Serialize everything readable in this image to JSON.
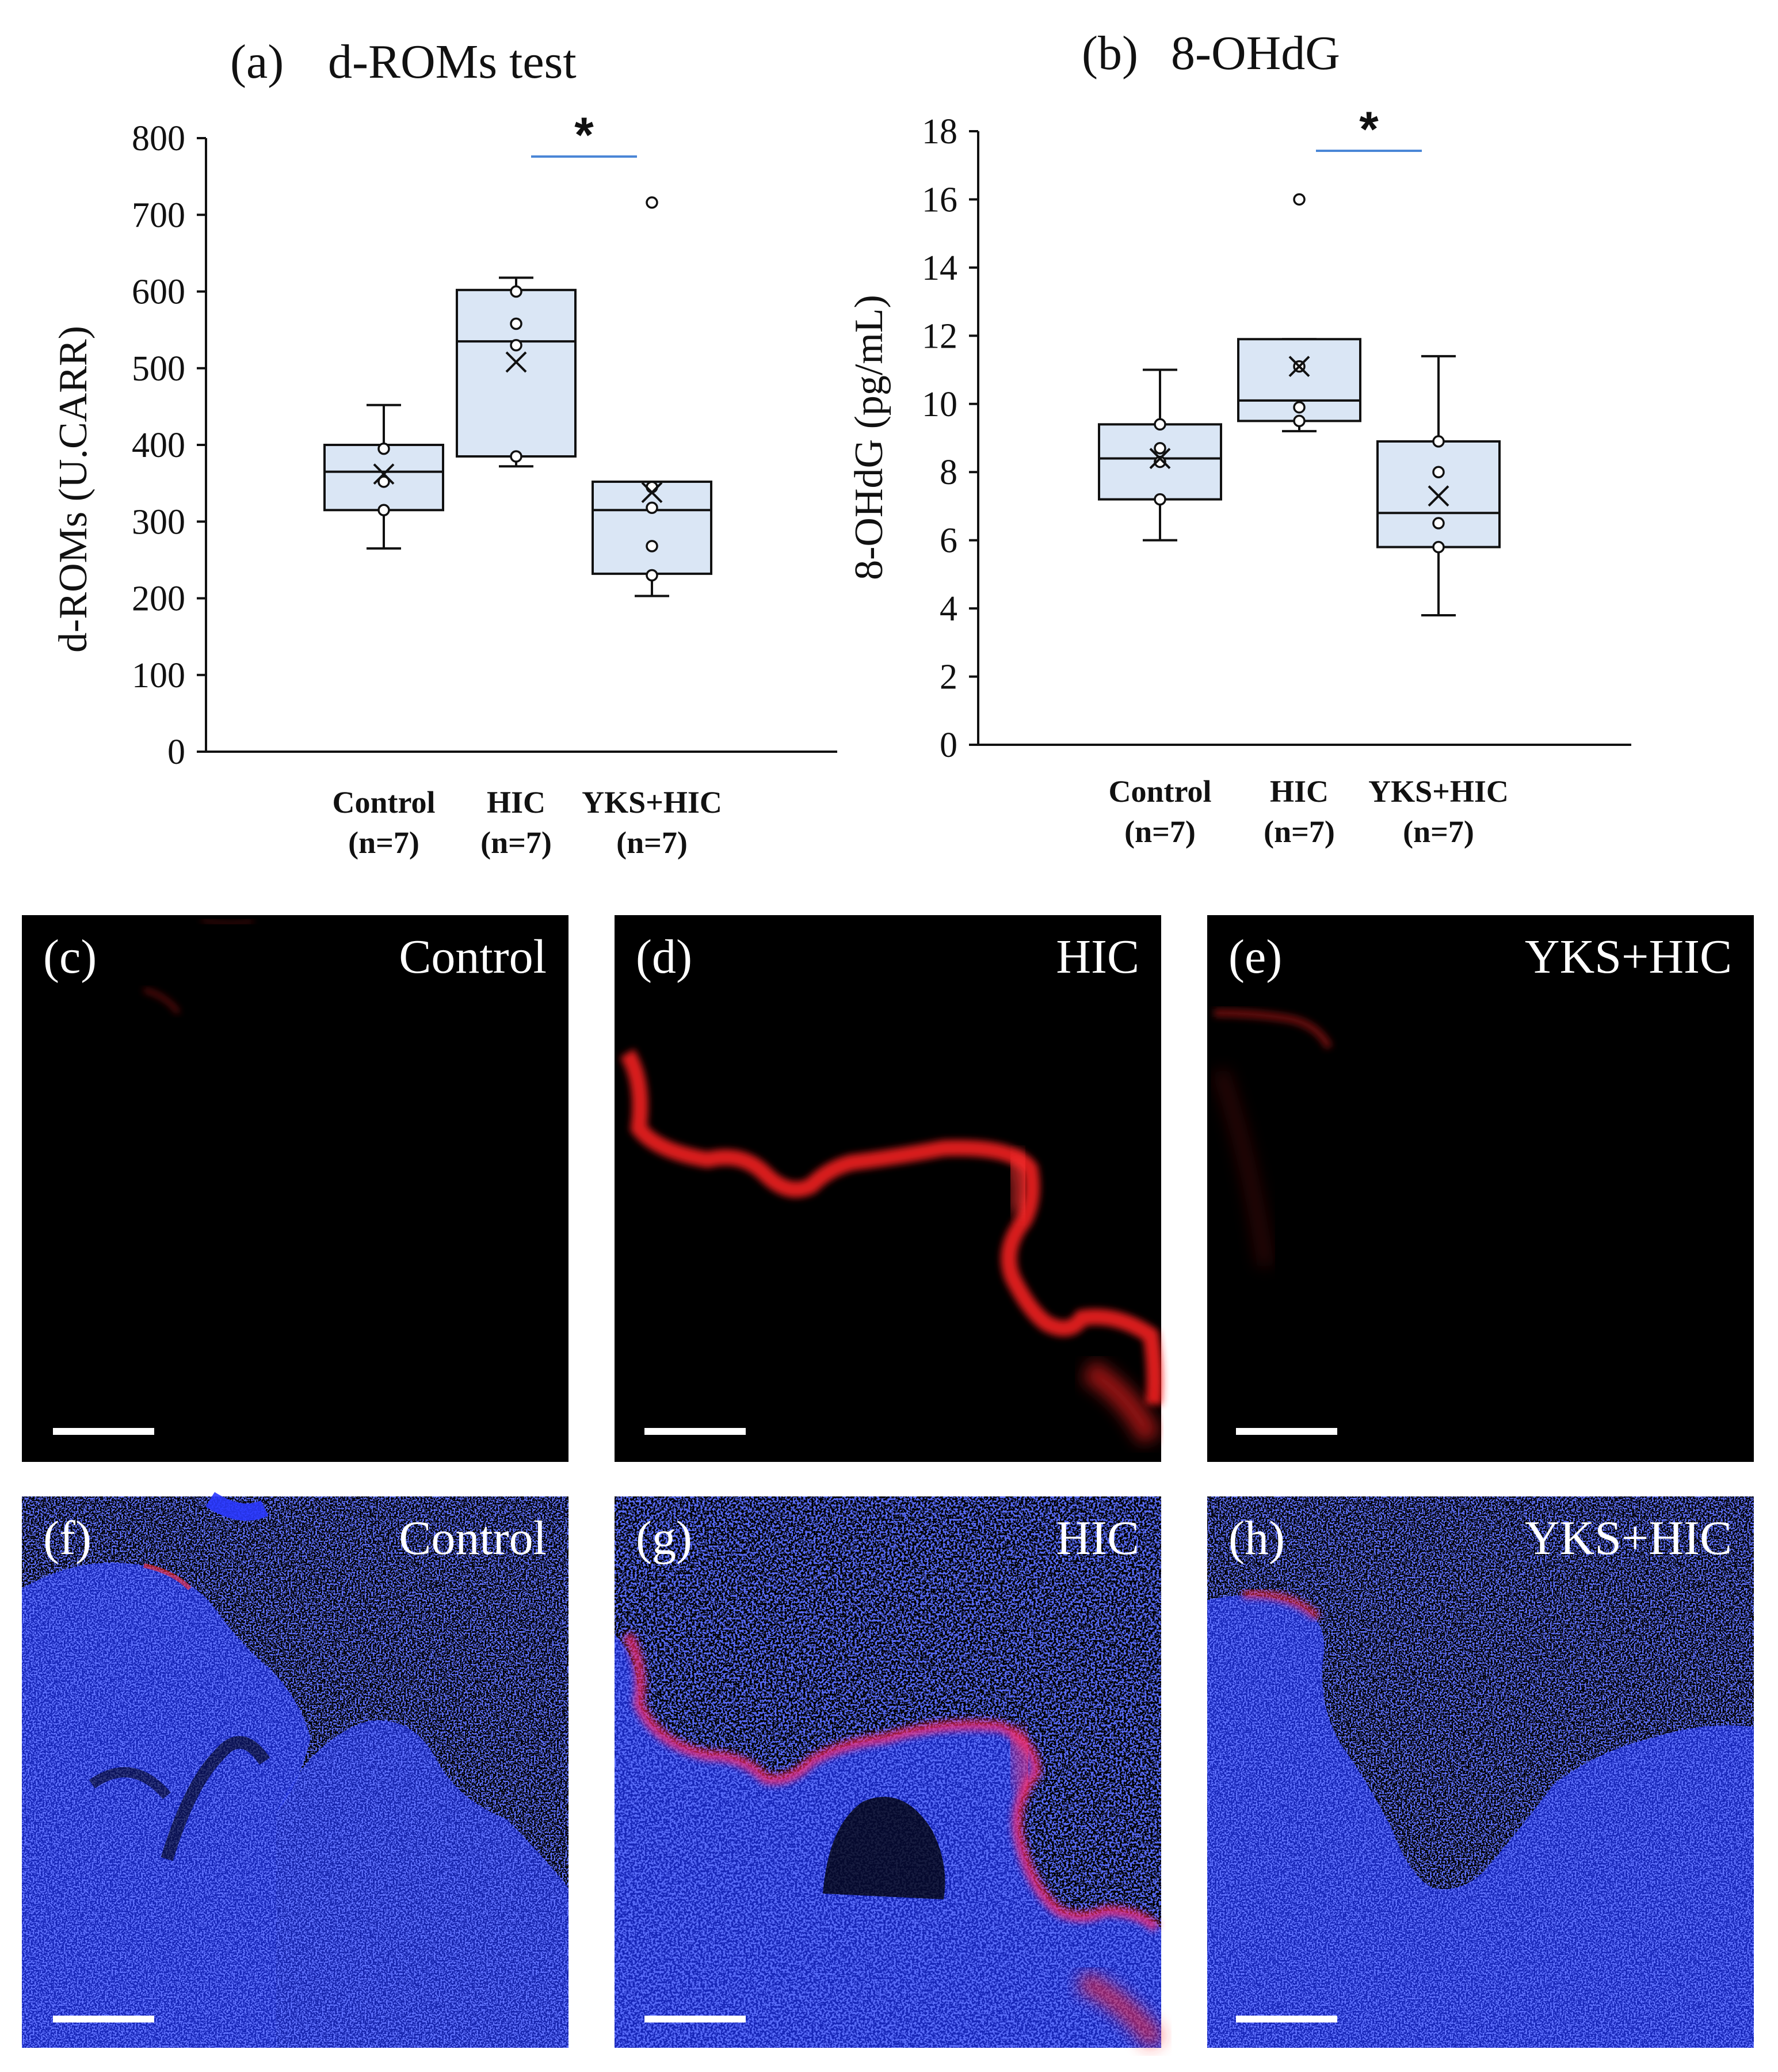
{
  "colors": {
    "box_fill": "#dae6f5",
    "box_stroke": "#111111",
    "sig_line": "#4a86d6",
    "background": "#ffffff",
    "image_bg": "#000000",
    "nuclear_blue": "#1f2cff",
    "signal_red": "#ff1a1a"
  },
  "chart_data": [
    {
      "type": "box",
      "panel": "(a)",
      "title": "d-ROMs  test",
      "ylabel": "d-ROMs (U.CARR)",
      "ylim": [
        0,
        800
      ],
      "yticks": [
        "0",
        "100",
        "200",
        "300",
        "400",
        "500",
        "600",
        "700",
        "800"
      ],
      "groups": [
        {
          "name": "Control",
          "n": "(n=7)",
          "min": 265,
          "q1": 315,
          "median": 365,
          "q3": 400,
          "max": 452,
          "mean": 362,
          "points": [
            395,
            315,
            352
          ],
          "outliers": []
        },
        {
          "name": "HIC",
          "n": "(n=7)",
          "min": 372,
          "q1": 385,
          "median": 535,
          "q3": 602,
          "max": 618,
          "mean": 508,
          "points": [
            600,
            558,
            530,
            385
          ],
          "outliers": []
        },
        {
          "name": "YKS+HIC",
          "n": "(n=7)",
          "min": 203,
          "q1": 232,
          "median": 315,
          "q3": 352,
          "max": 352,
          "mean": 338,
          "points": [
            345,
            318,
            268,
            230
          ],
          "outliers": [
            716
          ]
        }
      ],
      "significance": {
        "between": [
          "HIC",
          "YKS+HIC"
        ],
        "label": "*"
      }
    },
    {
      "type": "box",
      "panel": "(b)",
      "title": "8-OHdG",
      "ylabel": "8-OHdG (pg/mL)",
      "ylim": [
        0,
        18
      ],
      "yticks": [
        "0",
        "2",
        "4",
        "6",
        "8",
        "10",
        "12",
        "14",
        "16",
        "18"
      ],
      "groups": [
        {
          "name": "Control",
          "n": "(n=7)",
          "min": 6.0,
          "q1": 7.2,
          "median": 8.4,
          "q3": 9.4,
          "max": 11.0,
          "mean": 8.4,
          "points": [
            9.4,
            8.7,
            8.3,
            7.2
          ],
          "outliers": []
        },
        {
          "name": "HIC",
          "n": "(n=7)",
          "min": 9.2,
          "q1": 9.5,
          "median": 10.1,
          "q3": 11.9,
          "max": 11.9,
          "mean": 11.1,
          "points": [
            11.1,
            9.9,
            9.5
          ],
          "outliers": [
            16.0
          ]
        },
        {
          "name": "YKS+HIC",
          "n": "(n=7)",
          "min": 3.8,
          "q1": 5.8,
          "median": 6.8,
          "q3": 8.9,
          "max": 11.4,
          "mean": 7.3,
          "points": [
            8.9,
            8.0,
            6.5,
            5.8
          ],
          "outliers": []
        }
      ],
      "significance": {
        "between": [
          "HIC",
          "YKS+HIC"
        ],
        "label": "*"
      }
    }
  ],
  "micrographs": [
    {
      "label": "(c)",
      "group": "Control",
      "stain": "red"
    },
    {
      "label": "(d)",
      "group": "HIC",
      "stain": "red"
    },
    {
      "label": "(e)",
      "group": "YKS+HIC",
      "stain": "red"
    },
    {
      "label": "(f)",
      "group": "Control",
      "stain": "merge"
    },
    {
      "label": "(g)",
      "group": "HIC",
      "stain": "merge"
    },
    {
      "label": "(h)",
      "group": "YKS+HIC",
      "stain": "merge"
    }
  ]
}
